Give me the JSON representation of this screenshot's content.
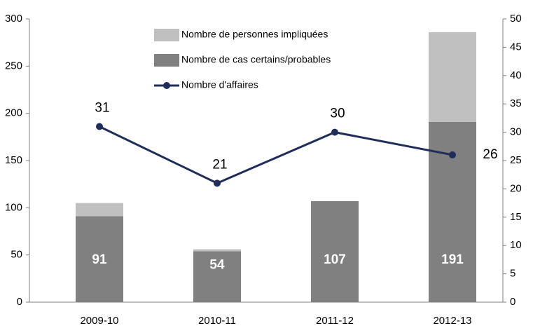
{
  "chart_data": {
    "type": "bar-line",
    "categories": [
      "2009-10",
      "2010-11",
      "2011-12",
      "2012-13"
    ],
    "series": [
      {
        "name": "Nombre de personnes impliquées",
        "type": "bar",
        "color": "#c0c0c0",
        "values": [
          14,
          2,
          0,
          95
        ]
      },
      {
        "name": "Nombre de cas certains/probables",
        "type": "bar",
        "color": "#808080",
        "values": [
          91,
          54,
          107,
          191
        ],
        "show_labels": true
      },
      {
        "name": "Nombre d'affaires",
        "type": "line",
        "axis": "y2",
        "color": "#1f2d5a",
        "values": [
          31,
          21,
          30,
          26
        ],
        "show_labels": true
      }
    ],
    "ylim": [
      0,
      300
    ],
    "yticks": [
      0,
      50,
      100,
      150,
      200,
      250,
      300
    ],
    "y2lim": [
      0,
      50
    ],
    "y2ticks": [
      0,
      5,
      10,
      15,
      20,
      25,
      30,
      35,
      40,
      45,
      50
    ],
    "grid": false,
    "legend": "top"
  }
}
